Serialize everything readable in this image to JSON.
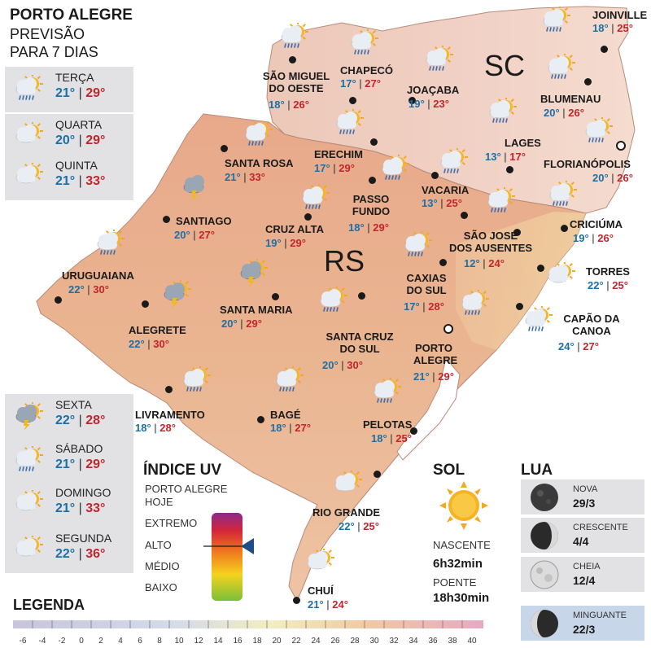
{
  "header": {
    "title": "PORTO ALEGRE",
    "subtitle_line1": "PREVISÃO",
    "subtitle_line2": "PARA 7 DIAS"
  },
  "forecast_days": [
    {
      "day": "TERÇA",
      "min": "21°",
      "max": "29°",
      "icon": "sun-cloud-rain-icon"
    },
    {
      "day": "QUARTA",
      "min": "20°",
      "max": "29°",
      "icon": "sun-cloud-icon"
    },
    {
      "day": "QUINTA",
      "min": "21°",
      "max": "33°",
      "icon": "sun-cloud-icon"
    },
    {
      "day": "SEXTA",
      "min": "22°",
      "max": "28°",
      "icon": "sun-cloud-storm-icon"
    },
    {
      "day": "SÁBADO",
      "min": "21°",
      "max": "29°",
      "icon": "sun-cloud-rain-icon"
    },
    {
      "day": "DOMINGO",
      "min": "21°",
      "max": "33°",
      "icon": "sun-cloud-icon"
    },
    {
      "day": "SEGUNDA",
      "min": "22°",
      "max": "36°",
      "icon": "sun-cloud-icon"
    }
  ],
  "states": {
    "rs": "RS",
    "sc": "SC"
  },
  "cities": {
    "joinville": {
      "name": "JOINVILLE",
      "min": "18°",
      "max": "25°"
    },
    "sao_miguel": {
      "name": "SÃO MIGUEL DO OESTE",
      "line1": "SÃO MIGUEL",
      "line2": "DO OESTE",
      "min": "18°",
      "max": "26°"
    },
    "chapeco": {
      "name": "CHAPECÓ",
      "min": "17°",
      "max": "27°"
    },
    "joacaba": {
      "name": "JOAÇABA",
      "min": "19°",
      "max": "23°"
    },
    "blumenau": {
      "name": "BLUMENAU",
      "min": "20°",
      "max": "26°"
    },
    "lages": {
      "name": "LAGES",
      "min": "13°",
      "max": "17°"
    },
    "florianopolis": {
      "name": "FLORIANÓPOLIS",
      "min": "20°",
      "max": "26°"
    },
    "santa_rosa": {
      "name": "SANTA ROSA",
      "min": "21°",
      "max": "33°"
    },
    "erechim": {
      "name": "ERECHIM",
      "min": "17°",
      "max": "29°"
    },
    "vacaria": {
      "name": "VACARIA",
      "min": "13°",
      "max": "25°"
    },
    "passo_fundo": {
      "name": "PASSO FUNDO",
      "line1": "PASSO",
      "line2": "FUNDO",
      "min": "18°",
      "max": "29°"
    },
    "santiago": {
      "name": "SANTIAGO",
      "min": "20°",
      "max": "27°"
    },
    "cruz_alta": {
      "name": "CRUZ ALTA",
      "min": "19°",
      "max": "29°"
    },
    "criciuma": {
      "name": "CRICIÚMA",
      "min": "19°",
      "max": "26°"
    },
    "sao_jose": {
      "name": "SÃO JOSÉ DOS AUSENTES",
      "line1": "SÃO JOSÉ",
      "line2": "DOS AUSENTES",
      "min": "12°",
      "max": "24°"
    },
    "uruguaiana": {
      "name": "URUGUAIANA",
      "min": "22°",
      "max": "30°"
    },
    "torres": {
      "name": "TORRES",
      "min": "22°",
      "max": "25°"
    },
    "caxias": {
      "name": "CAXIAS DO SUL",
      "line1": "CAXIAS",
      "line2": "DO SUL",
      "min": "17°",
      "max": "28°"
    },
    "santa_maria": {
      "name": "SANTA MARIA",
      "min": "20°",
      "max": "29°"
    },
    "alegrete": {
      "name": "ALEGRETE",
      "min": "22°",
      "max": "30°"
    },
    "capao": {
      "name": "CAPÃO DA CANOA",
      "line1": "CAPÃO DA",
      "line2": "CANOA",
      "min": "24°",
      "max": "27°"
    },
    "santa_cruz": {
      "name": "SANTA CRUZ DO SUL",
      "line1": "SANTA CRUZ",
      "line2": "DO SUL",
      "min": "20°",
      "max": "30°"
    },
    "porto_alegre": {
      "name": "PORTO ALEGRE",
      "line1": "PORTO",
      "line2": "ALEGRE",
      "min": "21°",
      "max": "29°"
    },
    "livramento": {
      "name": "LIVRAMENTO",
      "min": "18°",
      "max": "28°"
    },
    "bage": {
      "name": "BAGÉ",
      "min": "18°",
      "max": "27°"
    },
    "pelotas": {
      "name": "PELOTAS",
      "min": "18°",
      "max": "25°"
    },
    "rio_grande": {
      "name": "RIO GRANDE",
      "min": "22°",
      "max": "25°"
    },
    "chui": {
      "name": "CHUÍ",
      "min": "21°",
      "max": "24°"
    }
  },
  "uv": {
    "title": "ÍNDICE UV",
    "subtitle_line1": "PORTO ALEGRE",
    "subtitle_line2": "HOJE",
    "levels": [
      "EXTREMO",
      "ALTO",
      "MÉDIO",
      "BAIXO"
    ],
    "current_level": "ALTO"
  },
  "sun": {
    "title": "SOL",
    "sunrise_label": "NASCENTE",
    "sunrise": "6h32min",
    "sunset_label": "POENTE",
    "sunset": "18h30min"
  },
  "moon": {
    "title": "LUA",
    "phases": [
      {
        "name": "NOVA",
        "date": "29/3"
      },
      {
        "name": "CRESCENTE",
        "date": "4/4"
      },
      {
        "name": "CHEIA",
        "date": "12/4"
      },
      {
        "name": "MINGUANTE",
        "date": "22/3"
      }
    ],
    "highlighted": "MINGUANTE"
  },
  "legend": {
    "title": "LEGENDA",
    "scale": [
      "-6",
      "-4",
      "-2",
      "0",
      "2",
      "4",
      "6",
      "8",
      "10",
      "12",
      "14",
      "16",
      "18",
      "20",
      "22",
      "24",
      "26",
      "28",
      "30",
      "32",
      "34",
      "36",
      "38",
      "40"
    ]
  },
  "colors": {
    "min_temp": "#1c6fa6",
    "max_temp": "#c3252c",
    "map_land": "#e9b48f",
    "sea": "#ffffff"
  }
}
